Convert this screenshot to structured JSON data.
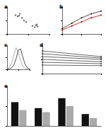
{
  "chart_data": [
    {
      "type": "scatter",
      "title": "a",
      "x": [
        20,
        25,
        30,
        35,
        28,
        60,
        65,
        70,
        72,
        68,
        40,
        45
      ],
      "values": [
        70,
        65,
        75,
        60,
        68,
        30,
        25,
        35,
        28,
        32,
        50,
        45
      ],
      "color": "#555555",
      "xlim": [
        0,
        100
      ],
      "xticks": [
        0,
        50,
        100
      ],
      "ylim": [
        0,
        100
      ],
      "yticks": [
        0,
        50,
        100
      ],
      "tick_labels": false,
      "grid": false
    },
    {
      "type": "line",
      "title": "b",
      "x": [
        0,
        1,
        2,
        3,
        4
      ],
      "series": [
        {
          "color": "#222222",
          "values": [
            20,
            40,
            60,
            75,
            85
          ]
        },
        {
          "color": "#cc0000",
          "values": [
            15,
            30,
            45,
            60,
            70
          ]
        }
      ],
      "xlim": [
        0,
        4
      ],
      "xticks": [
        0,
        2,
        4
      ],
      "ylim": [
        0,
        100
      ],
      "yticks": [
        0,
        50,
        100
      ],
      "tick_labels": false,
      "grid": false,
      "marker": "circle"
    },
    {
      "type": "line",
      "title": "c",
      "x": [
        0,
        1,
        2,
        3,
        4,
        5,
        6,
        7,
        8,
        9,
        10
      ],
      "series": [
        {
          "color": "#999999",
          "values": [
            2,
            8,
            25,
            60,
            90,
            70,
            35,
            12,
            4,
            1,
            0
          ]
        },
        {
          "color": "#222222",
          "values": [
            0,
            2,
            6,
            18,
            45,
            80,
            85,
            50,
            20,
            6,
            1
          ]
        }
      ],
      "xlim": [
        0,
        10
      ],
      "xticks": [
        0,
        5,
        10
      ],
      "ylim": [
        0,
        100
      ],
      "yticks": [
        0,
        50,
        100
      ],
      "tick_labels": false,
      "grid": false,
      "marker": "none"
    },
    {
      "type": "line",
      "title": "d",
      "x": [
        0,
        1
      ],
      "series": [
        {
          "color": "#444444",
          "values": [
            80,
            60
          ]
        },
        {
          "color": "#444444",
          "values": [
            70,
            55
          ]
        },
        {
          "color": "#444444",
          "values": [
            60,
            50
          ]
        },
        {
          "color": "#444444",
          "values": [
            50,
            42
          ]
        },
        {
          "color": "#444444",
          "values": [
            40,
            35
          ]
        },
        {
          "color": "#444444",
          "values": [
            30,
            28
          ]
        }
      ],
      "xlim": [
        0,
        1
      ],
      "xticks": [
        0,
        1
      ],
      "ylim": [
        0,
        100
      ],
      "yticks": [
        0,
        50,
        100
      ],
      "tick_labels": false,
      "grid": false,
      "marker": "circle"
    },
    {
      "type": "bar",
      "title": "e",
      "categories": [
        null,
        null,
        null,
        null
      ],
      "series": [
        {
          "color": "#111111",
          "values": [
            60,
            45,
            70,
            30
          ]
        },
        {
          "color": "#aaaaaa",
          "values": [
            40,
            35,
            50,
            20
          ]
        }
      ],
      "ylim": [
        0,
        100
      ],
      "yticks": [
        0,
        50,
        100
      ],
      "tick_labels": false,
      "grid": false
    }
  ]
}
